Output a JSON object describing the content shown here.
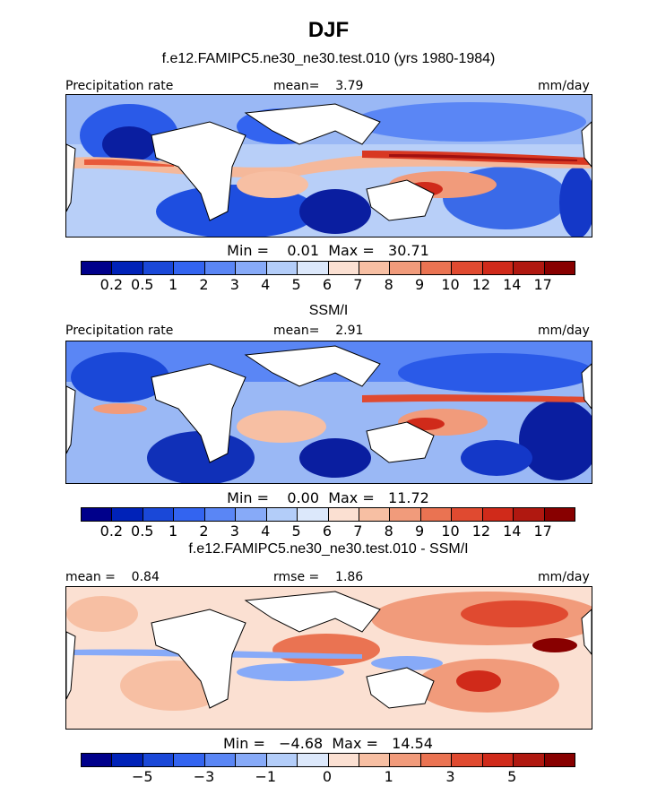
{
  "title": "DJF",
  "panels": [
    {
      "id": "model",
      "subtitle": "f.e12.FAMIPC5.ne30_ne30.test.010 (yrs 1980-1984)",
      "left_label": "Precipitation rate",
      "center_label": "mean=    3.79",
      "right_label": "mm/day",
      "minmax": "Min =    0.01  Max =   30.71",
      "colorbar_labels": [
        "0.2",
        "0.5",
        "1",
        "2",
        "3",
        "4",
        "5",
        "6",
        "7",
        "8",
        "9",
        "10",
        "12",
        "14",
        "17"
      ]
    },
    {
      "id": "obs",
      "subtitle": "SSM/I",
      "left_label": "Precipitation rate",
      "center_label": "mean=    2.91",
      "right_label": "mm/day",
      "minmax": "Min =    0.00  Max =   11.72",
      "colorbar_labels": [
        "0.2",
        "0.5",
        "1",
        "2",
        "3",
        "4",
        "5",
        "6",
        "7",
        "8",
        "9",
        "10",
        "12",
        "14",
        "17"
      ]
    },
    {
      "id": "diff",
      "subtitle": "f.e12.FAMIPC5.ne30_ne30.test.010 - SSM/I",
      "left_label": "mean =    0.84",
      "center_label": "rmse =    1.86",
      "right_label": "mm/day",
      "minmax": "Min =   −4.68  Max =   14.54",
      "colorbar_labels": [
        "−5",
        "−3",
        "−1",
        "0",
        "1",
        "3",
        "5"
      ]
    }
  ],
  "colorbar_colors": [
    "#00008b",
    "#0022b8",
    "#1a48d8",
    "#3364f0",
    "#5a86f5",
    "#87aaf8",
    "#b3cdf9",
    "#dce8fb",
    "#fbe0d2",
    "#f7bfa3",
    "#f19b7b",
    "#ea7352",
    "#e04a30",
    "#d02a1a",
    "#b01810",
    "#880000"
  ],
  "diff_colorbar_colors": [
    "#00008b",
    "#0022b8",
    "#1a48d8",
    "#3364f0",
    "#5a86f5",
    "#87aaf8",
    "#b3cdf9",
    "#dce8fb",
    "#fbe0d2",
    "#f7bfa3",
    "#f19b7b",
    "#ea7352",
    "#e04a30",
    "#d02a1a",
    "#b01810",
    "#880000"
  ]
}
